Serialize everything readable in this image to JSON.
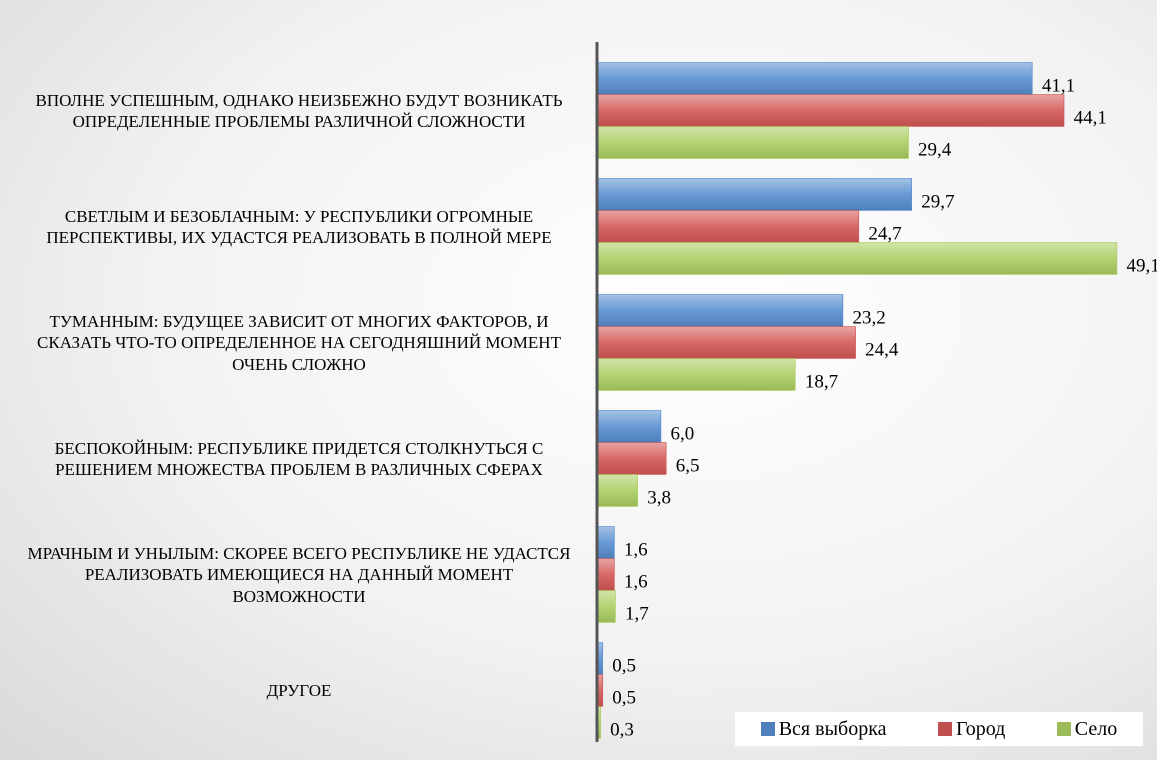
{
  "chart_data": {
    "type": "bar",
    "orientation": "horizontal",
    "categories": [
      "ВПОЛНЕ УСПЕШНЫМ, ОДНАКО НЕИЗБЕЖНО БУДУТ ВОЗНИКАТЬ ОПРЕДЕЛЕННЫЕ ПРОБЛЕМЫ РАЗЛИЧНОЙ СЛОЖНОСТИ",
      "СВЕТЛЫМ И БЕЗОБЛАЧНЫМ: У РЕСПУБЛИКИ ОГРОМНЫЕ ПЕРСПЕКТИВЫ, ИХ УДАСТСЯ РЕАЛИЗОВАТЬ В ПОЛНОЙ МЕРЕ",
      "ТУМАННЫМ: БУДУЩЕЕ ЗАВИСИТ ОТ МНОГИХ ФАКТОРОВ, И СКАЗАТЬ ЧТО-ТО ОПРЕДЕЛЕННОЕ НА СЕГОДНЯШНИЙ МОМЕНТ ОЧЕНЬ СЛОЖНО",
      "БЕСПОКОЙНЫМ: РЕСПУБЛИКЕ ПРИДЕТСЯ СТОЛКНУТЬСЯ С РЕШЕНИЕМ МНОЖЕСТВА ПРОБЛЕМ В РАЗЛИЧНЫХ СФЕРАХ",
      "МРАЧНЫМ И УНЫЛЫМ: СКОРЕЕ ВСЕГО РЕСПУБЛИКЕ НЕ УДАСТСЯ РЕАЛИЗОВАТЬ ИМЕЮЩИЕСЯ НА ДАННЫЙ МОМЕНТ ВОЗМОЖНОСТИ",
      "ДРУГОЕ"
    ],
    "series": [
      {
        "name": "Вся выборка",
        "color": "#4f81bd",
        "values": [
          41.1,
          29.7,
          23.2,
          6.0,
          1.6,
          0.5
        ],
        "value_labels": [
          "41,1",
          "29,7",
          "23,2",
          "6,0",
          "1,6",
          "0,5"
        ]
      },
      {
        "name": "Город",
        "color": "#c0504d",
        "values": [
          44.1,
          24.7,
          24.4,
          6.5,
          1.6,
          0.5
        ],
        "value_labels": [
          "44,1",
          "24,7",
          "24,4",
          "6,5",
          "1,6",
          "0,5"
        ]
      },
      {
        "name": "Село",
        "color": "#9bbb59",
        "values": [
          29.4,
          49.1,
          18.7,
          3.8,
          1.7,
          0.3
        ],
        "value_labels": [
          "29,4",
          "49,1",
          "18,7",
          "3,8",
          "1,7",
          "0,3"
        ]
      }
    ],
    "xlim": [
      0,
      50
    ],
    "legend": "bottom-right"
  }
}
